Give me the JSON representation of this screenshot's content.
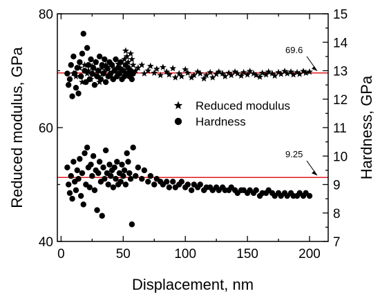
{
  "chart_data": {
    "type": "scatter",
    "xlabel": "Displacement, nm",
    "ylabel_left": "Reduced modulus, GPa",
    "ylabel_right": "Hardness, GPa",
    "xlim": [
      -3,
      215
    ],
    "ylim_left": [
      40,
      80
    ],
    "ylim_right": [
      7,
      15
    ],
    "x_ticks": [
      0,
      50,
      100,
      150,
      200
    ],
    "y_ticks_left": [
      40,
      60,
      80
    ],
    "y_ticks_right": [
      7,
      8,
      9,
      10,
      11,
      12,
      13,
      14,
      15
    ],
    "colors": {
      "marks": "#000000",
      "reference_line": "#e0191b",
      "background": "#ffffff"
    },
    "legend": {
      "placement": "center-right",
      "entries": [
        "Reduced modulus",
        "Hardness"
      ]
    },
    "reference_lines": [
      {
        "series": "Reduced modulus",
        "value": 69.6,
        "label": "69.6"
      },
      {
        "series": "Hardness",
        "value": 9.25,
        "label": "9.25"
      }
    ],
    "series": [
      {
        "name": "Reduced modulus",
        "axis": "left",
        "marker": "star",
        "points": [
          [
            10,
            69.5
          ],
          [
            12,
            69
          ],
          [
            15,
            70.5
          ],
          [
            17,
            68
          ],
          [
            19,
            71
          ],
          [
            21,
            69.5
          ],
          [
            22,
            70
          ],
          [
            24,
            68.5
          ],
          [
            25,
            70.8
          ],
          [
            26,
            69.3
          ],
          [
            28,
            71.5
          ],
          [
            29,
            70
          ],
          [
            30,
            69
          ],
          [
            31,
            68
          ],
          [
            33,
            70.5
          ],
          [
            35,
            69.8
          ],
          [
            36,
            71
          ],
          [
            38,
            70.2
          ],
          [
            40,
            69.5
          ],
          [
            41,
            68.8
          ],
          [
            43,
            70.3
          ],
          [
            45,
            69.6
          ],
          [
            46,
            71.2
          ],
          [
            48,
            70.5
          ],
          [
            49,
            70
          ],
          [
            51,
            72
          ],
          [
            52,
            73.5
          ],
          [
            53,
            72.5
          ],
          [
            54,
            71.5
          ],
          [
            56,
            73
          ],
          [
            57,
            72
          ],
          [
            58,
            71
          ],
          [
            60,
            70
          ],
          [
            62,
            70.5
          ],
          [
            65,
            71
          ],
          [
            67,
            69.5
          ],
          [
            70,
            70
          ],
          [
            72,
            70.8
          ],
          [
            75,
            69.6
          ],
          [
            77,
            70.3
          ],
          [
            80,
            69.2
          ],
          [
            82,
            70.6
          ],
          [
            85,
            69.8
          ],
          [
            87,
            69.3
          ],
          [
            90,
            70.4
          ],
          [
            92,
            68.8
          ],
          [
            95,
            69.5
          ],
          [
            97,
            69
          ],
          [
            100,
            70.2
          ],
          [
            102,
            69.6
          ],
          [
            105,
            68.8
          ],
          [
            107,
            69.2
          ],
          [
            110,
            69.8
          ],
          [
            112,
            69.5
          ],
          [
            115,
            68.6
          ],
          [
            117,
            69.2
          ],
          [
            120,
            69.7
          ],
          [
            122,
            68.8
          ],
          [
            125,
            69.4
          ],
          [
            127,
            69.8
          ],
          [
            130,
            69.5
          ],
          [
            132,
            69
          ],
          [
            135,
            69.6
          ],
          [
            137,
            69.2
          ],
          [
            140,
            69.8
          ],
          [
            142,
            69.5
          ],
          [
            145,
            69.1
          ],
          [
            147,
            69.7
          ],
          [
            150,
            69.3
          ],
          [
            152,
            69.9
          ],
          [
            155,
            69.5
          ],
          [
            157,
            69.2
          ],
          [
            160,
            68.9
          ],
          [
            162,
            69.6
          ],
          [
            165,
            69.3
          ],
          [
            167,
            69.8
          ],
          [
            170,
            69.5
          ],
          [
            172,
            69.1
          ],
          [
            175,
            69.7
          ],
          [
            177,
            69.4
          ],
          [
            180,
            69.9
          ],
          [
            182,
            69.5
          ],
          [
            185,
            69.8
          ],
          [
            187,
            69.3
          ],
          [
            190,
            69.7
          ],
          [
            192,
            69.4
          ],
          [
            195,
            69.9
          ],
          [
            197,
            69.6
          ],
          [
            200,
            69.8
          ]
        ]
      },
      {
        "name": "Hardness",
        "axis": "right",
        "marker": "circle",
        "points": [
          [
            5,
            12.9
          ],
          [
            6,
            12.5
          ],
          [
            7,
            12.7
          ],
          [
            8,
            13.2
          ],
          [
            9,
            12.1
          ],
          [
            10,
            13.5
          ],
          [
            11,
            12.9
          ],
          [
            12,
            12.4
          ],
          [
            13,
            13.1
          ],
          [
            14,
            12.2
          ],
          [
            15,
            13.3
          ],
          [
            16,
            12.8
          ],
          [
            17,
            13.6
          ],
          [
            18,
            14.3
          ],
          [
            19,
            13.0
          ],
          [
            20,
            12.6
          ],
          [
            21,
            13.8
          ],
          [
            22,
            13.2
          ],
          [
            23,
            12.7
          ],
          [
            24,
            13.4
          ],
          [
            25,
            12.9
          ],
          [
            26,
            13.1
          ],
          [
            27,
            12.5
          ],
          [
            28,
            13.3
          ],
          [
            29,
            12.8
          ],
          [
            30,
            13.0
          ],
          [
            31,
            13.5
          ],
          [
            32,
            12.7
          ],
          [
            33,
            13.2
          ],
          [
            34,
            12.9
          ],
          [
            35,
            13.4
          ],
          [
            36,
            12.6
          ],
          [
            37,
            13.1
          ],
          [
            38,
            12.8
          ],
          [
            39,
            13.3
          ],
          [
            40,
            12.9
          ],
          [
            41,
            13.2
          ],
          [
            42,
            12.7
          ],
          [
            43,
            13.0
          ],
          [
            44,
            13.4
          ],
          [
            45,
            12.8
          ],
          [
            46,
            13.1
          ],
          [
            47,
            12.9
          ],
          [
            48,
            13.3
          ],
          [
            49,
            12.7
          ],
          [
            50,
            13.0
          ],
          [
            51,
            12.8
          ],
          [
            52,
            13.2
          ],
          [
            53,
            12.9
          ],
          [
            54,
            13.1
          ],
          [
            55,
            12.8
          ],
          [
            56,
            13.0
          ],
          [
            57,
            12.7
          ],
          [
            58,
            12.9
          ],
          [
            5,
            9.6
          ],
          [
            6,
            9.0
          ],
          [
            7,
            8.7
          ],
          [
            8,
            9.3
          ],
          [
            9,
            8.5
          ],
          [
            10,
            9.8
          ],
          [
            11,
            9.1
          ],
          [
            12,
            8.8
          ],
          [
            13,
            9.5
          ],
          [
            14,
            9.2
          ],
          [
            15,
            9.9
          ],
          [
            16,
            8.6
          ],
          [
            17,
            9.4
          ],
          [
            18,
            8.3
          ],
          [
            19,
            10.1
          ],
          [
            20,
            9.0
          ],
          [
            21,
            10.3
          ],
          [
            22,
            9.6
          ],
          [
            23,
            8.9
          ],
          [
            24,
            9.7
          ],
          [
            25,
            9.3
          ],
          [
            26,
            10.0
          ],
          [
            27,
            8.8
          ],
          [
            28,
            9.5
          ],
          [
            29,
            8.1
          ],
          [
            30,
            9.4
          ],
          [
            31,
            9.8
          ],
          [
            32,
            9.1
          ],
          [
            33,
            7.9
          ],
          [
            34,
            9.6
          ],
          [
            35,
            9.2
          ],
          [
            36,
            10.2
          ],
          [
            37,
            9.4
          ],
          [
            38,
            9.0
          ],
          [
            39,
            9.7
          ],
          [
            40,
            9.3
          ],
          [
            41,
            9.5
          ],
          [
            42,
            8.9
          ],
          [
            43,
            9.6
          ],
          [
            44,
            9.2
          ],
          [
            45,
            9.8
          ],
          [
            46,
            9.0
          ],
          [
            47,
            9.4
          ],
          [
            48,
            9.1
          ],
          [
            49,
            9.7
          ],
          [
            50,
            9.3
          ],
          [
            51,
            9.5
          ],
          [
            52,
            9.0
          ],
          [
            53,
            10.1
          ],
          [
            54,
            9.8
          ],
          [
            55,
            9.4
          ],
          [
            56,
            9.2
          ],
          [
            57,
            7.6
          ],
          [
            58,
            10.3
          ],
          [
            60,
            9.3
          ],
          [
            62,
            9.6
          ],
          [
            65,
            9.2
          ],
          [
            67,
            9.5
          ],
          [
            70,
            9.1
          ],
          [
            72,
            9.3
          ],
          [
            75,
            9.0
          ],
          [
            77,
            9.2
          ],
          [
            80,
            9.1
          ],
          [
            82,
            9.0
          ],
          [
            85,
            9.1
          ],
          [
            87,
            8.9
          ],
          [
            90,
            9.1
          ],
          [
            92,
            8.9
          ],
          [
            95,
            9.0
          ],
          [
            97,
            9.1
          ],
          [
            100,
            8.9
          ],
          [
            102,
            9.0
          ],
          [
            105,
            8.8
          ],
          [
            107,
            9.0
          ],
          [
            110,
            8.9
          ],
          [
            112,
            9.0
          ],
          [
            115,
            8.8
          ],
          [
            117,
            8.9
          ],
          [
            120,
            8.9
          ],
          [
            122,
            8.8
          ],
          [
            125,
            8.9
          ],
          [
            127,
            8.8
          ],
          [
            130,
            8.9
          ],
          [
            132,
            8.8
          ],
          [
            135,
            8.8
          ],
          [
            137,
            8.9
          ],
          [
            140,
            8.8
          ],
          [
            142,
            8.7
          ],
          [
            145,
            8.8
          ],
          [
            147,
            8.8
          ],
          [
            150,
            8.7
          ],
          [
            152,
            8.8
          ],
          [
            155,
            8.7
          ],
          [
            157,
            8.8
          ],
          [
            160,
            8.6
          ],
          [
            162,
            8.7
          ],
          [
            165,
            8.7
          ],
          [
            167,
            8.8
          ],
          [
            170,
            8.7
          ],
          [
            172,
            8.6
          ],
          [
            175,
            8.7
          ],
          [
            177,
            8.6
          ],
          [
            180,
            8.7
          ],
          [
            182,
            8.6
          ],
          [
            185,
            8.7
          ],
          [
            187,
            8.6
          ],
          [
            190,
            8.6
          ],
          [
            192,
            8.7
          ],
          [
            195,
            8.6
          ],
          [
            197,
            8.7
          ],
          [
            200,
            8.6
          ]
        ]
      }
    ]
  }
}
